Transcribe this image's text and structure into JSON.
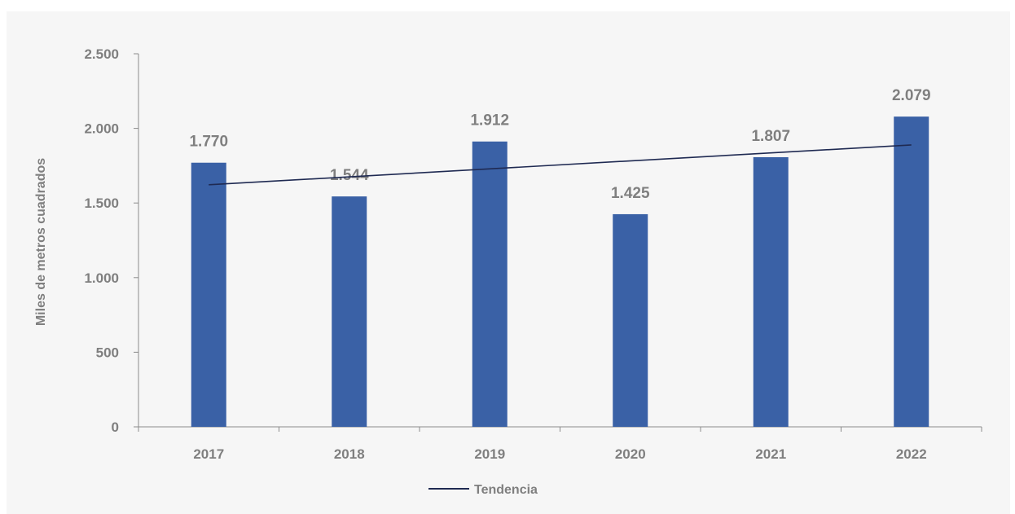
{
  "chart_data": {
    "type": "bar",
    "title": "",
    "xlabel": "",
    "ylabel": "Miles de metros cuadrados",
    "categories": [
      "2017",
      "2018",
      "2019",
      "2020",
      "2021",
      "2022"
    ],
    "values": [
      1770,
      1544,
      1912,
      1425,
      1807,
      2079
    ],
    "data_labels": [
      "1.770",
      "1.544",
      "1.912",
      "1.425",
      "1.807",
      "2.079"
    ],
    "ylim": [
      0,
      2500
    ],
    "yticks": [
      0,
      500,
      1000,
      1500,
      2000,
      2500
    ],
    "ytick_labels": [
      "0",
      "500",
      "1.000",
      "1.500",
      "2.000",
      "2.500"
    ],
    "grid": false,
    "bar_color": "#3a61a6",
    "trendline": {
      "name": "Tendencia",
      "type": "linear",
      "start_value": 1622,
      "end_value": 1889,
      "color": "#1f2a52"
    },
    "legend": {
      "position": "bottom",
      "entries": [
        "Tendencia"
      ]
    }
  }
}
